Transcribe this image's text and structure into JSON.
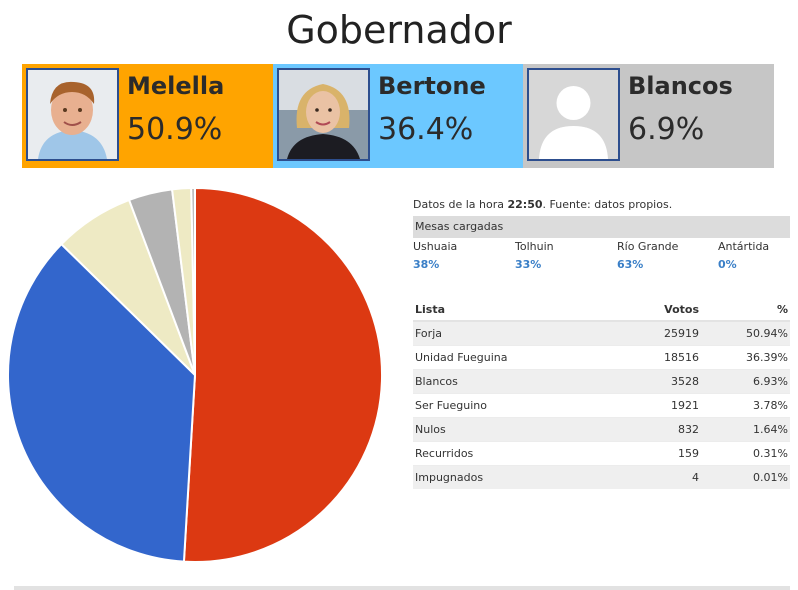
{
  "title": "Gobernador",
  "candidates": [
    {
      "name": "Melella",
      "pct": "50.9%",
      "bg": "#ffa400",
      "photo": "man-portrait"
    },
    {
      "name": "Bertone",
      "pct": "36.4%",
      "bg": "#6cc8ff",
      "photo": "woman-portrait"
    },
    {
      "name": "Blancos",
      "pct": "6.9%",
      "bg": "#c6c6c6",
      "photo": "generic-avatar"
    }
  ],
  "info": {
    "prefix": "Datos de la hora ",
    "time": "22:50",
    "suffix": ". Fuente: datos propios."
  },
  "mesas": {
    "header": "Mesas cargadas",
    "items": [
      {
        "label": "Ushuaia",
        "value": "38%"
      },
      {
        "label": "Tolhuin",
        "value": "33%"
      },
      {
        "label": "Río Grande",
        "value": "63%"
      },
      {
        "label": "Antártida",
        "value": "0%"
      }
    ]
  },
  "table": {
    "headers": [
      "Lista",
      "Votos",
      "%"
    ],
    "rows": [
      {
        "lista": "Forja",
        "votos": "25919",
        "pct": "50.94%"
      },
      {
        "lista": "Unidad Fueguina",
        "votos": "18516",
        "pct": "36.39%"
      },
      {
        "lista": "Blancos",
        "votos": "3528",
        "pct": "6.93%"
      },
      {
        "lista": "Ser Fueguino",
        "votos": "1921",
        "pct": "3.78%"
      },
      {
        "lista": "Nulos",
        "votos": "832",
        "pct": "1.64%"
      },
      {
        "lista": "Recurridos",
        "votos": "159",
        "pct": "0.31%"
      },
      {
        "lista": "Impugnados",
        "votos": "4",
        "pct": "0.01%"
      }
    ]
  },
  "chart_data": {
    "type": "pie",
    "title": "",
    "categories": [
      "Forja",
      "Unidad Fueguina",
      "Blancos",
      "Ser Fueguino",
      "Nulos",
      "Recurridos",
      "Impugnados"
    ],
    "values": [
      25919,
      18516,
      3528,
      1921,
      832,
      159,
      4
    ],
    "colors": [
      "#dc3912",
      "#3366cc",
      "#eeeac4",
      "#b3b3b3",
      "#eeeac4",
      "#b3b3b3",
      "#eeeac4"
    ]
  }
}
